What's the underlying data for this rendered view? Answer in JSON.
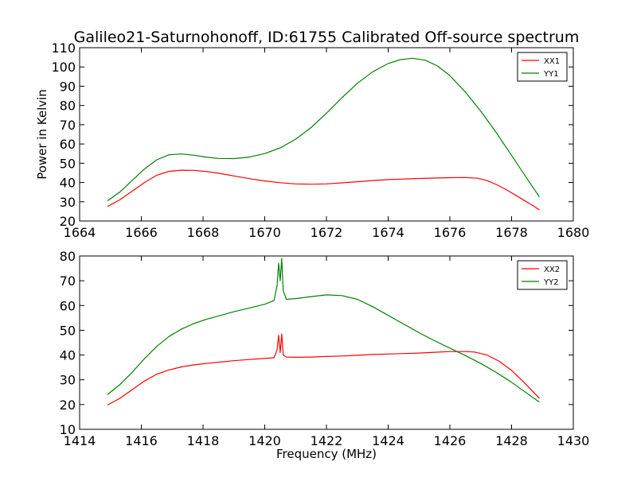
{
  "chart_data": [
    {
      "type": "line",
      "title": "Galileo21-Saturnohonoff, ID:61755 Calibrated Off-source spectrum",
      "xlabel": "",
      "ylabel": "Power in Kelvin",
      "xlim": [
        1664,
        1680
      ],
      "ylim": [
        20,
        110
      ],
      "xticks": [
        1664,
        1666,
        1668,
        1670,
        1672,
        1674,
        1676,
        1678,
        1680
      ],
      "yticks": [
        20,
        30,
        40,
        50,
        60,
        70,
        80,
        90,
        100,
        110
      ],
      "legend": "top-right",
      "grid": false,
      "series": [
        {
          "name": "XX1",
          "color": "#ff0000",
          "x": [
            1664.9,
            1665.3,
            1665.7,
            1666.1,
            1666.5,
            1666.9,
            1667.3,
            1667.7,
            1668.1,
            1668.5,
            1669.0,
            1669.5,
            1670.0,
            1670.5,
            1671.0,
            1671.5,
            1672.0,
            1672.5,
            1673.0,
            1673.5,
            1674.0,
            1674.5,
            1675.0,
            1675.5,
            1676.0,
            1676.5,
            1676.9,
            1677.2,
            1677.5,
            1677.8,
            1678.1,
            1678.4,
            1678.7,
            1678.9
          ],
          "values": [
            27.5,
            31.0,
            35.5,
            40.0,
            43.8,
            45.8,
            46.4,
            46.3,
            45.7,
            44.8,
            43.4,
            42.0,
            40.8,
            39.9,
            39.3,
            39.1,
            39.3,
            39.8,
            40.4,
            41.0,
            41.5,
            41.8,
            42.1,
            42.3,
            42.5,
            42.6,
            42.2,
            41.0,
            39.0,
            36.5,
            33.7,
            30.8,
            27.9,
            25.8
          ]
        },
        {
          "name": "YY1",
          "color": "#008000",
          "x": [
            1664.9,
            1665.3,
            1665.7,
            1666.1,
            1666.5,
            1666.9,
            1667.3,
            1667.7,
            1668.1,
            1668.5,
            1669.0,
            1669.5,
            1670.0,
            1670.5,
            1671.0,
            1671.5,
            1672.0,
            1672.5,
            1673.0,
            1673.5,
            1674.0,
            1674.4,
            1674.8,
            1675.2,
            1675.6,
            1676.0,
            1676.5,
            1677.0,
            1677.5,
            1678.0,
            1678.5,
            1678.9
          ],
          "values": [
            30.5,
            35.0,
            41.0,
            47.0,
            51.8,
            54.4,
            54.8,
            54.2,
            53.2,
            52.5,
            52.4,
            53.2,
            55.0,
            58.0,
            62.5,
            68.5,
            76.0,
            84.0,
            91.5,
            97.5,
            101.8,
            103.8,
            104.5,
            103.5,
            100.5,
            95.5,
            87.0,
            77.0,
            66.0,
            54.0,
            42.0,
            32.5
          ]
        }
      ]
    },
    {
      "type": "line",
      "title": "",
      "xlabel": "Frequency (MHz)",
      "ylabel": "",
      "xlim": [
        1414,
        1430
      ],
      "ylim": [
        10,
        80
      ],
      "xticks": [
        1414,
        1416,
        1418,
        1420,
        1422,
        1424,
        1426,
        1428,
        1430
      ],
      "yticks": [
        10,
        20,
        30,
        40,
        50,
        60,
        70,
        80
      ],
      "legend": "top-right",
      "grid": false,
      "series": [
        {
          "name": "XX2",
          "color": "#ff0000",
          "x": [
            1414.9,
            1415.3,
            1415.7,
            1416.1,
            1416.5,
            1416.9,
            1417.3,
            1417.7,
            1418.1,
            1418.5,
            1419.0,
            1419.5,
            1420.0,
            1420.3,
            1420.4,
            1420.45,
            1420.5,
            1420.55,
            1420.6,
            1420.7,
            1421.0,
            1421.5,
            1422.0,
            1422.5,
            1423.0,
            1423.5,
            1424.0,
            1424.5,
            1425.0,
            1425.5,
            1426.0,
            1426.5,
            1426.8,
            1427.2,
            1427.6,
            1428.0,
            1428.4,
            1428.9
          ],
          "values": [
            19.8,
            22.5,
            26.0,
            29.5,
            32.3,
            34.0,
            35.2,
            36.0,
            36.6,
            37.1,
            37.7,
            38.2,
            38.6,
            38.9,
            42.0,
            48.0,
            41.0,
            48.5,
            40.0,
            39.2,
            39.1,
            39.2,
            39.4,
            39.6,
            39.9,
            40.2,
            40.4,
            40.6,
            40.8,
            41.1,
            41.4,
            41.4,
            41.2,
            40.0,
            37.5,
            33.8,
            29.0,
            22.5
          ]
        },
        {
          "name": "YY2",
          "color": "#008000",
          "x": [
            1414.9,
            1415.3,
            1415.7,
            1416.1,
            1416.5,
            1416.9,
            1417.3,
            1417.7,
            1418.1,
            1418.5,
            1419.0,
            1419.5,
            1420.0,
            1420.3,
            1420.4,
            1420.45,
            1420.5,
            1420.55,
            1420.6,
            1420.7,
            1421.0,
            1421.5,
            1422.0,
            1422.5,
            1423.0,
            1423.5,
            1424.0,
            1424.5,
            1425.0,
            1425.5,
            1426.0,
            1426.5,
            1427.0,
            1427.5,
            1428.0,
            1428.5,
            1428.9
          ],
          "values": [
            24.0,
            28.0,
            33.0,
            38.5,
            43.5,
            47.5,
            50.5,
            52.7,
            54.4,
            55.8,
            57.5,
            59.0,
            60.5,
            62.0,
            68.0,
            77.0,
            70.0,
            79.0,
            66.0,
            62.5,
            62.8,
            63.6,
            64.3,
            64.0,
            62.5,
            59.5,
            56.0,
            52.5,
            49.0,
            45.8,
            42.8,
            39.8,
            36.6,
            33.0,
            29.0,
            24.5,
            21.0
          ]
        }
      ]
    }
  ]
}
